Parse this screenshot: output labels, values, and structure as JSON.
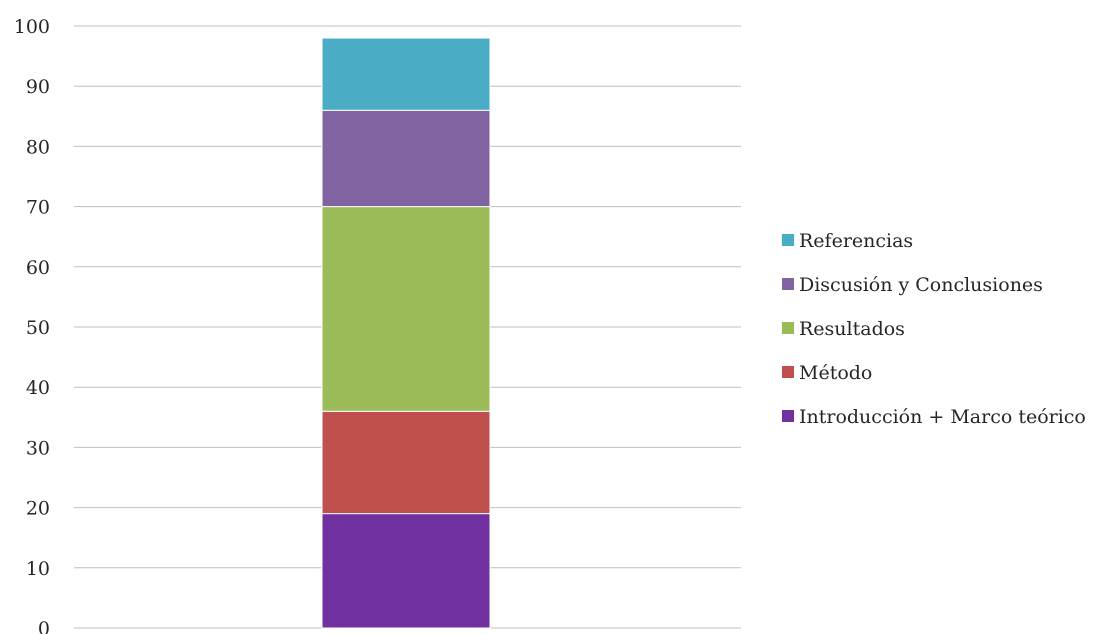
{
  "chart_data": {
    "type": "bar",
    "stacked": true,
    "categories": [
      ""
    ],
    "series": [
      {
        "name": "Introducción + Marco teórico",
        "values": [
          19
        ],
        "color": "#7030A0"
      },
      {
        "name": "Método",
        "values": [
          17
        ],
        "color": "#C0504D"
      },
      {
        "name": "Resultados",
        "values": [
          34
        ],
        "color": "#9BBB59"
      },
      {
        "name": "Discusión y Conclusiones",
        "values": [
          16
        ],
        "color": "#8064A2"
      },
      {
        "name": "Referencias",
        "values": [
          12
        ],
        "color": "#4BACC6"
      }
    ],
    "y_ticks": [
      "0",
      "10",
      "20",
      "30",
      "40",
      "50",
      "60",
      "70",
      "80",
      "90",
      "100"
    ],
    "ylim": [
      0,
      100
    ],
    "grid": true,
    "legend_placement": "right",
    "legend_order": [
      "Referencias",
      "Discusión y Conclusiones",
      "Resultados",
      "Método",
      "Introducción + Marco teórico"
    ]
  }
}
